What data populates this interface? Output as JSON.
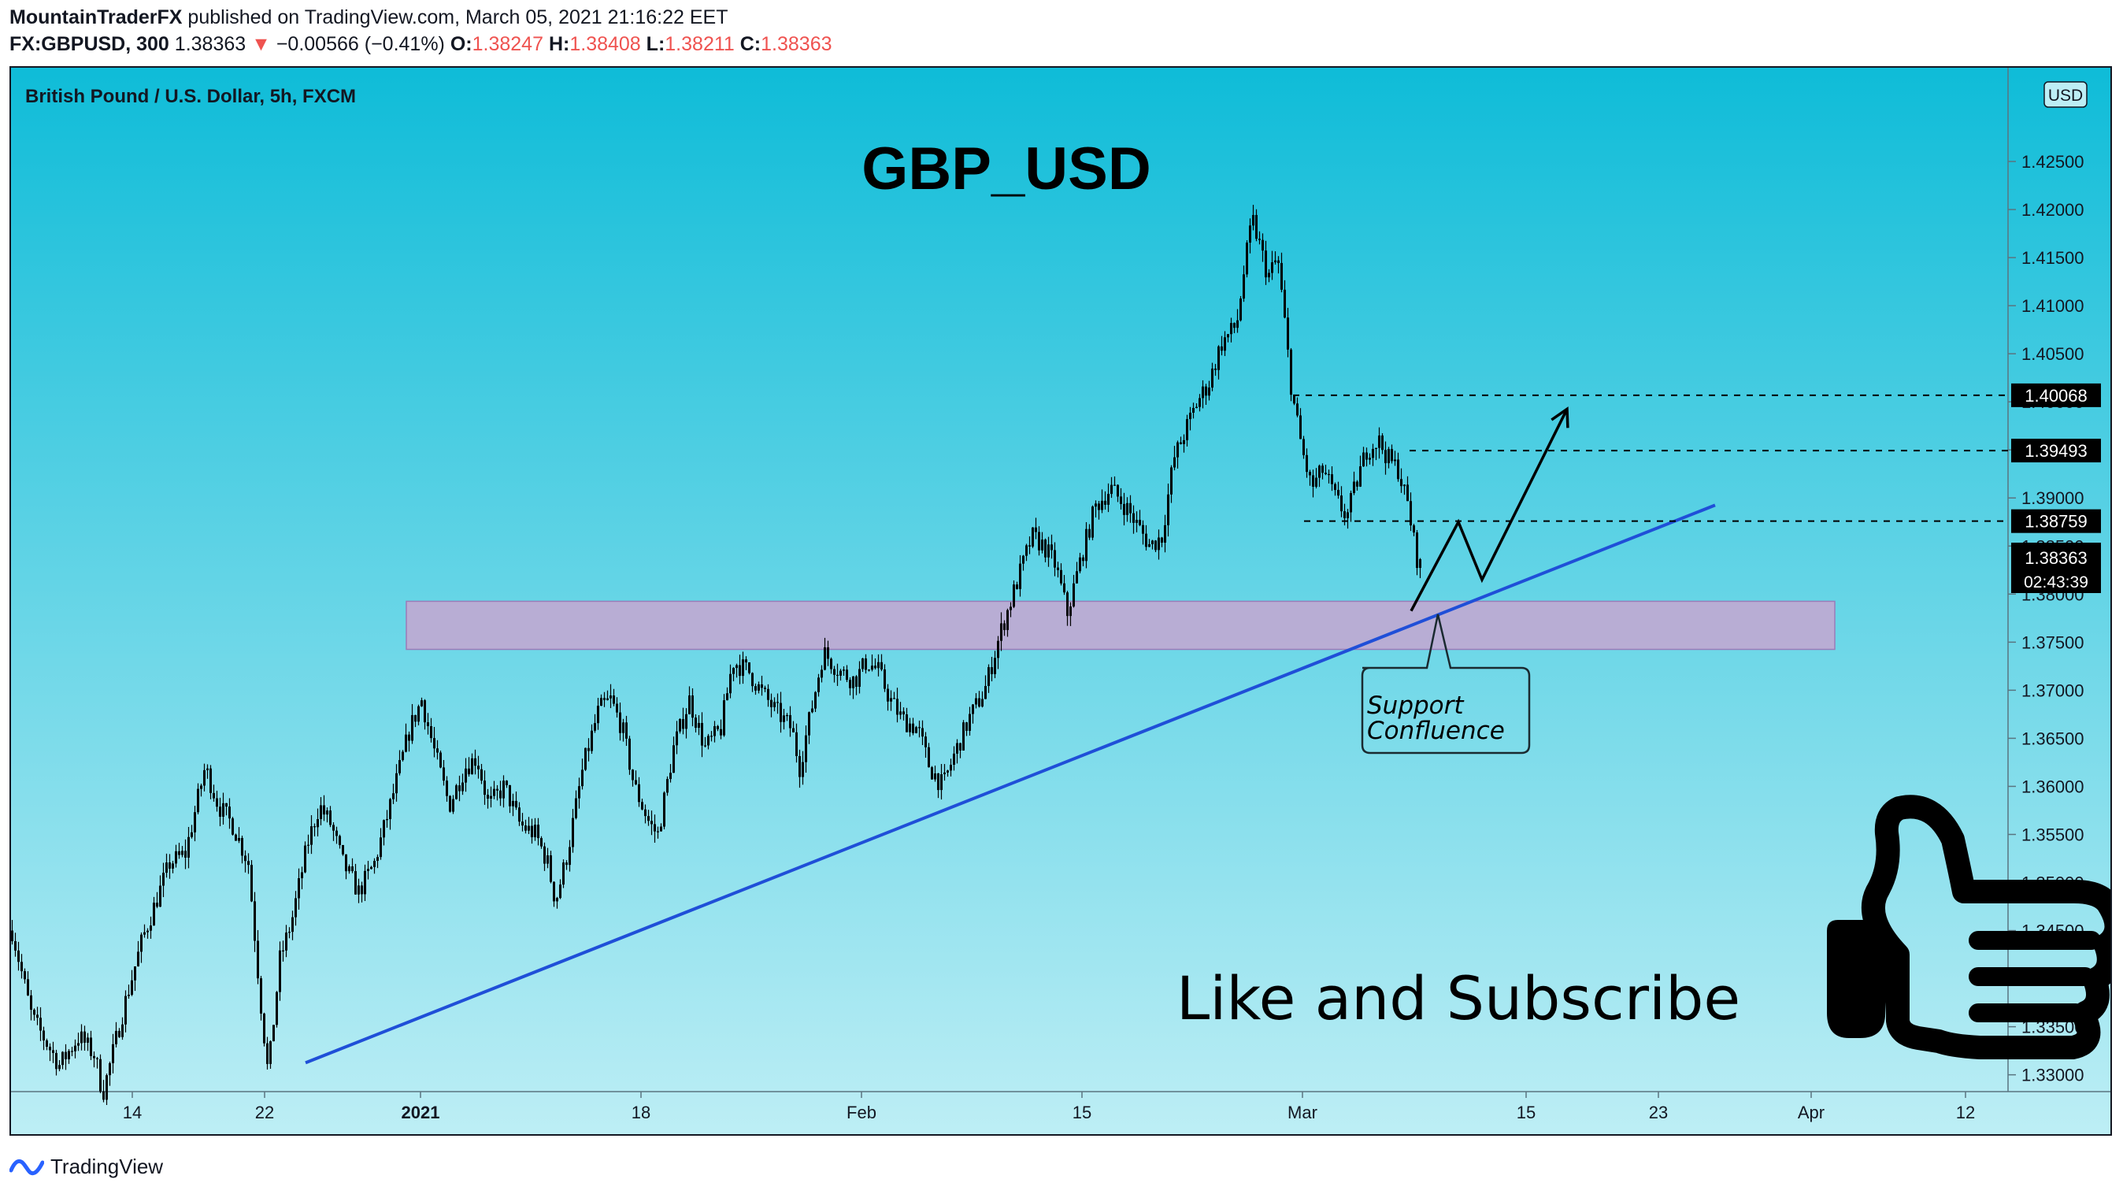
{
  "header": {
    "author": "MountainTraderFX",
    "published": "published on TradingView.com, March 05, 2021 21:16:22 EET",
    "symbol": "FX:GBPUSD, 300",
    "last": "1.38363",
    "change": "−0.00566 (−0.41%)",
    "o_label": "O:",
    "o_value": "1.38247",
    "h_label": "H:",
    "h_value": "1.38408",
    "l_label": "L:",
    "l_value": "1.38211",
    "c_label": "C:",
    "c_value": "1.38363"
  },
  "footer": {
    "logo_text": "TradingView"
  },
  "colors": {
    "bg_top": "#0fbcd8",
    "bg_bottom": "#bdeef5",
    "candle": "#000000",
    "trendline": "#1f4fd8",
    "zone": "#c1a9d1",
    "label_box": "#000000"
  },
  "chart_data": {
    "type": "candlestick",
    "instrument": "British Pound / U.S. Dollar, 5h, FXCM",
    "title": "GBP_USD",
    "currency": "USD",
    "ylim": [
      1.32825,
      1.43475
    ],
    "y_ticks": [
      "1.42500",
      "1.42000",
      "1.41500",
      "1.41000",
      "1.40500",
      "1.40000",
      "1.39500",
      "1.39000",
      "1.38500",
      "1.38000",
      "1.37500",
      "1.37000",
      "1.36500",
      "1.36000",
      "1.35500",
      "1.35000",
      "1.34500",
      "1.34000",
      "1.33500",
      "1.33000"
    ],
    "x_ticks": [
      {
        "label": "14",
        "bold": false
      },
      {
        "label": "22",
        "bold": false
      },
      {
        "label": "2021",
        "bold": true
      },
      {
        "label": "18",
        "bold": false
      },
      {
        "label": "Feb",
        "bold": false
      },
      {
        "label": "15",
        "bold": false
      },
      {
        "label": "Mar",
        "bold": false
      },
      {
        "label": "15",
        "bold": false
      },
      {
        "label": "23",
        "bold": false
      },
      {
        "label": "Apr",
        "bold": false
      },
      {
        "label": "12",
        "bold": false
      }
    ],
    "price_path": [
      [
        0,
        1.345
      ],
      [
        25,
        1.336
      ],
      [
        60,
        1.331
      ],
      [
        85,
        1.334
      ],
      [
        105,
        1.332
      ],
      [
        115,
        1.328
      ],
      [
        145,
        1.338
      ],
      [
        165,
        1.344
      ],
      [
        200,
        1.352
      ],
      [
        220,
        1.353
      ],
      [
        245,
        1.362
      ],
      [
        262,
        1.358
      ],
      [
        280,
        1.356
      ],
      [
        300,
        1.352
      ],
      [
        315,
        1.338
      ],
      [
        325,
        1.33
      ],
      [
        340,
        1.342
      ],
      [
        355,
        1.346
      ],
      [
        375,
        1.354
      ],
      [
        390,
        1.358
      ],
      [
        405,
        1.356
      ],
      [
        420,
        1.352
      ],
      [
        440,
        1.349
      ],
      [
        460,
        1.352
      ],
      [
        480,
        1.358
      ],
      [
        505,
        1.366
      ],
      [
        520,
        1.369
      ],
      [
        535,
        1.364
      ],
      [
        555,
        1.358
      ],
      [
        575,
        1.362
      ],
      [
        590,
        1.363
      ],
      [
        605,
        1.358
      ],
      [
        625,
        1.36
      ],
      [
        645,
        1.356
      ],
      [
        665,
        1.355
      ],
      [
        680,
        1.352
      ],
      [
        690,
        1.348
      ],
      [
        705,
        1.353
      ],
      [
        725,
        1.362
      ],
      [
        745,
        1.368
      ],
      [
        760,
        1.369
      ],
      [
        775,
        1.366
      ],
      [
        790,
        1.36
      ],
      [
        810,
        1.356
      ],
      [
        820,
        1.355
      ],
      [
        840,
        1.364
      ],
      [
        860,
        1.369
      ],
      [
        880,
        1.364
      ],
      [
        900,
        1.366
      ],
      [
        915,
        1.373
      ],
      [
        935,
        1.372
      ],
      [
        950,
        1.37
      ],
      [
        968,
        1.368
      ],
      [
        990,
        1.366
      ],
      [
        1000,
        1.362
      ],
      [
        1015,
        1.368
      ],
      [
        1030,
        1.374
      ],
      [
        1050,
        1.372
      ],
      [
        1070,
        1.371
      ],
      [
        1085,
        1.373
      ],
      [
        1100,
        1.372
      ],
      [
        1115,
        1.369
      ],
      [
        1130,
        1.367
      ],
      [
        1150,
        1.366
      ],
      [
        1165,
        1.362
      ],
      [
        1182,
        1.36
      ],
      [
        1195,
        1.363
      ],
      [
        1215,
        1.367
      ],
      [
        1235,
        1.37
      ],
      [
        1255,
        1.376
      ],
      [
        1275,
        1.381
      ],
      [
        1295,
        1.386
      ],
      [
        1310,
        1.385
      ],
      [
        1325,
        1.383
      ],
      [
        1340,
        1.378
      ],
      [
        1355,
        1.383
      ],
      [
        1375,
        1.389
      ],
      [
        1395,
        1.391
      ],
      [
        1415,
        1.389
      ],
      [
        1430,
        1.387
      ],
      [
        1445,
        1.385
      ],
      [
        1460,
        1.386
      ],
      [
        1475,
        1.394
      ],
      [
        1490,
        1.397
      ],
      [
        1505,
        1.4
      ],
      [
        1520,
        1.402
      ],
      [
        1535,
        1.406
      ],
      [
        1555,
        1.408
      ],
      [
        1565,
        1.414
      ],
      [
        1575,
        1.419
      ],
      [
        1585,
        1.416
      ],
      [
        1595,
        1.413
      ],
      [
        1607,
        1.415
      ],
      [
        1615,
        1.409
      ],
      [
        1625,
        1.401
      ],
      [
        1638,
        1.395
      ],
      [
        1650,
        1.391
      ],
      [
        1665,
        1.393
      ],
      [
        1680,
        1.39
      ],
      [
        1695,
        1.388
      ],
      [
        1705,
        1.391
      ],
      [
        1720,
        1.395
      ],
      [
        1735,
        1.396
      ],
      [
        1748,
        1.394
      ],
      [
        1760,
        1.393
      ],
      [
        1773,
        1.389
      ],
      [
        1783,
        1.384
      ],
      [
        1790,
        1.3825
      ]
    ],
    "horizontal_levels": [
      {
        "value": 1.40068,
        "label": "1.40068"
      },
      {
        "value": 1.39493,
        "label": "1.39493"
      },
      {
        "value": 1.38759,
        "label": "1.38759"
      }
    ],
    "current_price": {
      "label": "1.38363",
      "countdown": "02:43:39",
      "value": 1.38363
    },
    "support_zone": {
      "top": 1.37925,
      "bottom": 1.37425
    },
    "trendline": {
      "start": 1.33125,
      "end": 1.38925
    },
    "projection_path": [
      1.37825,
      1.3875,
      1.3815,
      1.39925
    ],
    "annotation": "Support\nConfluence",
    "overlay_text": "Like and Subscribe"
  }
}
